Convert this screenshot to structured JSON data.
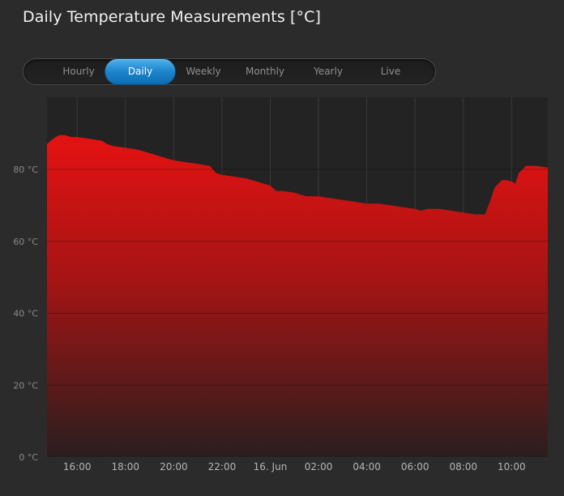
{
  "title": "Daily Temperature Measurements [°C]",
  "tabs": [
    {
      "label": "Hourly",
      "active": false
    },
    {
      "label": "Daily",
      "active": true
    },
    {
      "label": "Weekly",
      "active": false
    },
    {
      "label": "Monthly",
      "active": false
    },
    {
      "label": "Yearly",
      "active": false
    },
    {
      "label": "Live",
      "active": false
    }
  ],
  "colors": {
    "accent": "#1c84cc",
    "area_top": "#e31010",
    "area_bottom": "#2a1e1e",
    "background": "#2b2b2b",
    "plot_background": "#232323"
  },
  "chart_data": {
    "type": "area",
    "title": "",
    "xlabel": "",
    "ylabel": "",
    "ylim": [
      0,
      100
    ],
    "y_ticks": [
      "0 °C",
      "20 °C",
      "40 °C",
      "60 °C",
      "80 °C"
    ],
    "y_tick_values": [
      0,
      20,
      40,
      60,
      80
    ],
    "x_ticks": [
      "16:00",
      "18:00",
      "20:00",
      "22:00",
      "16. Jun",
      "02:00",
      "04:00",
      "06:00",
      "08:00",
      "10:00"
    ],
    "x_tick_hours": [
      16,
      18,
      20,
      22,
      24,
      26,
      28,
      30,
      32,
      34
    ],
    "xlim_hours": [
      14.75,
      35.5
    ],
    "grid": true,
    "series": [
      {
        "values_hours": [
          14.75,
          15.0,
          15.25,
          15.5,
          15.75,
          16.0,
          16.5,
          17.0,
          17.25,
          17.5,
          18.0,
          18.5,
          18.75,
          19.0,
          19.5,
          20.0,
          20.5,
          21.0,
          21.5,
          21.75,
          22.0,
          22.5,
          23.0,
          23.5,
          24.0,
          24.25,
          24.5,
          25.0,
          25.5,
          26.0,
          26.5,
          27.0,
          27.5,
          28.0,
          28.5,
          29.0,
          29.5,
          30.0,
          30.25,
          30.5,
          31.0,
          31.5,
          32.0,
          32.5,
          32.9,
          33.1,
          33.3,
          33.6,
          33.8,
          34.05,
          34.15,
          34.3,
          34.6,
          35.0,
          35.5
        ],
        "values": [
          87,
          88.5,
          89.5,
          89.5,
          89,
          89,
          88.5,
          88,
          87,
          86.5,
          86,
          85.5,
          85,
          84.5,
          83.5,
          82.5,
          82,
          81.5,
          81,
          79,
          78.5,
          78,
          77.5,
          76.5,
          75.5,
          74,
          74,
          73.5,
          72.5,
          72.5,
          72,
          71.5,
          71,
          70.5,
          70.5,
          70,
          69.5,
          69,
          68.5,
          69,
          69,
          68.5,
          68,
          67.5,
          67.5,
          71,
          75,
          77,
          77,
          76.5,
          76,
          79,
          81,
          81,
          80.5
        ]
      }
    ]
  }
}
